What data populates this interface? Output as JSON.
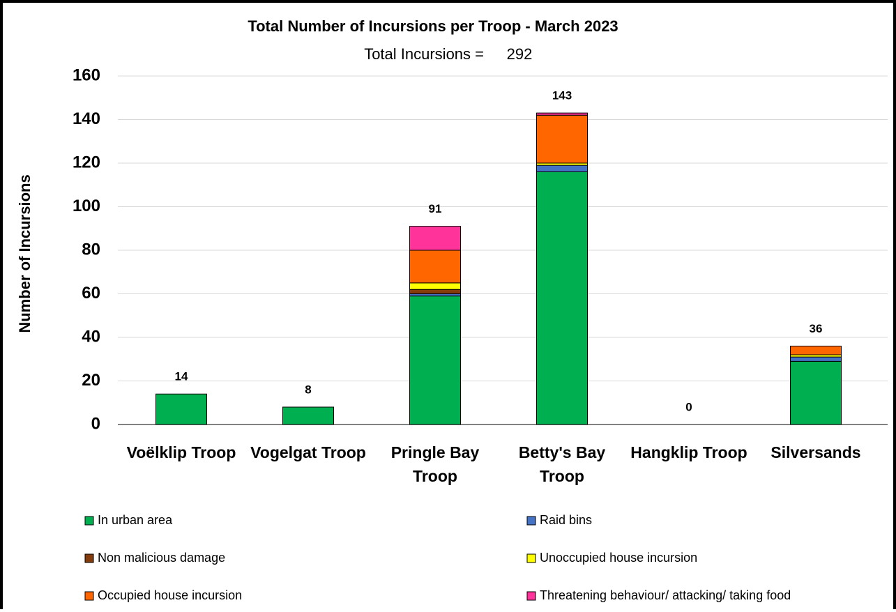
{
  "chart_data": {
    "type": "stacked_bar",
    "title": "Total Number of Incursions per Troop -  March 2023",
    "subtitle": "Total Incursions =",
    "total": 292,
    "y_label": "Number of Incursions",
    "categories": [
      "Voëlklip Troop",
      "Vogelgat Troop",
      "Pringle Bay Troop",
      "Betty's Bay Troop",
      "Hangklip Troop",
      "Silversands"
    ],
    "series": [
      {
        "name": "In urban area",
        "color": "#00b050",
        "values": [
          14,
          8,
          59,
          116,
          0,
          29
        ]
      },
      {
        "name": "Raid bins",
        "color": "#4472c4",
        "values": [
          0,
          0,
          1,
          3,
          0,
          2
        ]
      },
      {
        "name": "Non malicious damage",
        "color": "#843c0c",
        "values": [
          0,
          0,
          2,
          0,
          0,
          0
        ]
      },
      {
        "name": "Unoccupied house incursion",
        "color": "#ffff00",
        "values": [
          0,
          0,
          3,
          1,
          0,
          1
        ]
      },
      {
        "name": "Occupied house incursion",
        "color": "#ff6600",
        "values": [
          0,
          0,
          15,
          22,
          0,
          4
        ]
      },
      {
        "name": "Threatening behaviour/ attacking/ taking food",
        "color": "#ff3399",
        "values": [
          0,
          0,
          11,
          1,
          0,
          0
        ]
      }
    ],
    "totals": [
      14,
      8,
      91,
      143,
      0,
      36
    ],
    "ylim": [
      0,
      160
    ],
    "yticks": [
      0,
      20,
      40,
      60,
      80,
      100,
      120,
      140,
      160
    ],
    "grid": true,
    "legend": "bottom"
  }
}
